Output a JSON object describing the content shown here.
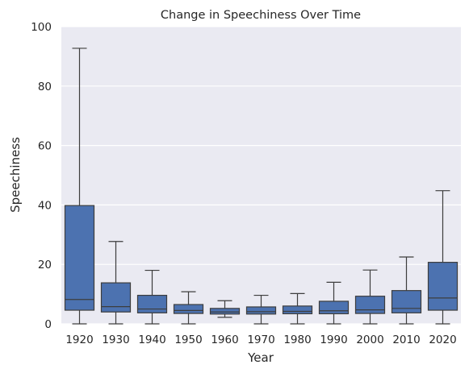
{
  "chart_data": {
    "type": "box",
    "title": "Change in Speechiness Over Time",
    "xlabel": "Year",
    "ylabel": "Speechiness",
    "ylim": [
      0,
      100
    ],
    "yticks": [
      0,
      20,
      40,
      60,
      80,
      100
    ],
    "grid": true,
    "box_color": "#4c72b0",
    "background_color": "#eaeaf2",
    "categories": [
      "1920",
      "1930",
      "1940",
      "1950",
      "1960",
      "1970",
      "1980",
      "1990",
      "2000",
      "2010",
      "2020"
    ],
    "boxes": [
      {
        "whisker_low": 0.0,
        "q1": 4.6,
        "median": 8.2,
        "q3": 39.8,
        "whisker_high": 92.7
      },
      {
        "whisker_low": 0.0,
        "q1": 4.0,
        "median": 5.8,
        "q3": 13.8,
        "whisker_high": 27.7
      },
      {
        "whisker_low": 0.0,
        "q1": 3.7,
        "median": 5.0,
        "q3": 9.6,
        "whisker_high": 18.0
      },
      {
        "whisker_low": 0.0,
        "q1": 3.5,
        "median": 4.5,
        "q3": 6.5,
        "whisker_high": 10.8
      },
      {
        "whisker_low": 2.2,
        "q1": 3.3,
        "median": 4.0,
        "q3": 5.2,
        "whisker_high": 7.8
      },
      {
        "whisker_low": 0.0,
        "q1": 3.3,
        "median": 4.1,
        "q3": 5.7,
        "whisker_high": 9.6
      },
      {
        "whisker_low": 0.0,
        "q1": 3.4,
        "median": 4.2,
        "q3": 6.0,
        "whisker_high": 10.2
      },
      {
        "whisker_low": 0.0,
        "q1": 3.4,
        "median": 4.4,
        "q3": 7.6,
        "whisker_high": 14.0
      },
      {
        "whisker_low": 0.0,
        "q1": 3.5,
        "median": 4.7,
        "q3": 9.3,
        "whisker_high": 18.1
      },
      {
        "whisker_low": 0.0,
        "q1": 3.7,
        "median": 5.2,
        "q3": 11.2,
        "whisker_high": 22.5
      },
      {
        "whisker_low": 0.0,
        "q1": 4.6,
        "median": 8.7,
        "q3": 20.7,
        "whisker_high": 44.8
      }
    ]
  }
}
